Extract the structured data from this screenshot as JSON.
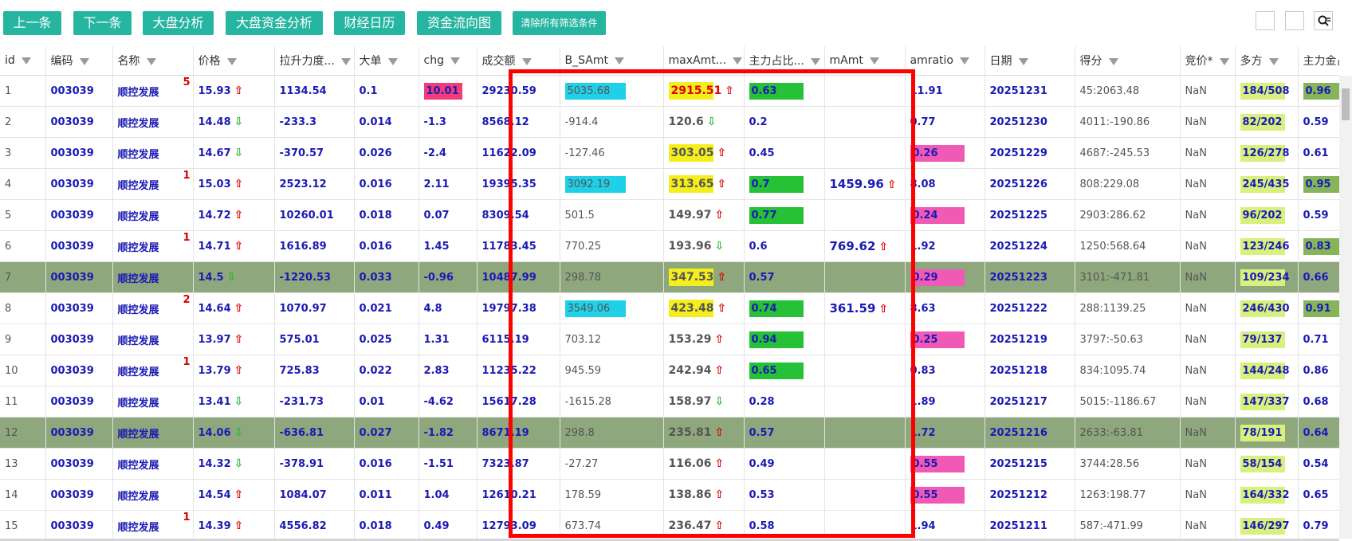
{
  "toolbar": {
    "buttons": [
      "上一条",
      "下一条",
      "大盘分析",
      "大盘资金分析",
      "财经日历",
      "资金流向图",
      "清除所有筛选条件"
    ]
  },
  "columns": [
    "id",
    "编码",
    "名称",
    "价格",
    "拉升力度...",
    "大单",
    "chg",
    "成交额",
    "B_SAmt",
    "maxAmt...",
    "主力占比...",
    "mAmt",
    "amratio",
    "日期",
    "得分",
    "竞价*",
    "多方",
    "主力金占..."
  ],
  "rows": [
    {
      "id": "1",
      "code": "003039",
      "name": "顺控发展",
      "mark": "5",
      "price": "15.93",
      "dir": "up",
      "lift": "1134.54",
      "big": "0.1",
      "chg": "10.01",
      "amount": "29230.59",
      "bs": "5035.68",
      "maxamt": "2915.51",
      "maxdir": "up",
      "zl": "0.63",
      "mamt": "",
      "mdir": "",
      "amr": "11.91",
      "date": "20251231",
      "score": "45:2063.48",
      "jj": "NaN",
      "df": "184/508",
      "zlj": "0.96"
    },
    {
      "id": "2",
      "code": "003039",
      "name": "顺控发展",
      "mark": "",
      "price": "14.48",
      "dir": "down",
      "lift": "-233.3",
      "big": "0.014",
      "chg": "-1.3",
      "amount": "8568.12",
      "bs": "-914.4",
      "maxamt": "120.6",
      "maxdir": "down",
      "zl": "0.2",
      "mamt": "",
      "mdir": "",
      "amr": "0.77",
      "date": "20251230",
      "score": "4011:-190.86",
      "jj": "NaN",
      "df": "82/202",
      "zlj": "0.59"
    },
    {
      "id": "3",
      "code": "003039",
      "name": "顺控发展",
      "mark": "",
      "price": "14.67",
      "dir": "down",
      "lift": "-370.57",
      "big": "0.026",
      "chg": "-2.4",
      "amount": "11622.09",
      "bs": "-127.46",
      "maxamt": "303.05",
      "maxdir": "up",
      "zl": "0.45",
      "mamt": "",
      "mdir": "",
      "amr": "0.26",
      "date": "20251229",
      "score": "4687:-245.53",
      "jj": "NaN",
      "df": "126/278",
      "zlj": "0.61"
    },
    {
      "id": "4",
      "code": "003039",
      "name": "顺控发展",
      "mark": "1",
      "price": "15.03",
      "dir": "up",
      "lift": "2523.12",
      "big": "0.016",
      "chg": "2.11",
      "amount": "19395.35",
      "bs": "3092.19",
      "maxamt": "313.65",
      "maxdir": "up",
      "zl": "0.7",
      "mamt": "1459.96",
      "mdir": "up",
      "amr": "8.08",
      "date": "20251226",
      "score": "808:229.08",
      "jj": "NaN",
      "df": "245/435",
      "zlj": "0.95"
    },
    {
      "id": "5",
      "code": "003039",
      "name": "顺控发展",
      "mark": "",
      "price": "14.72",
      "dir": "up",
      "lift": "10260.01",
      "big": "0.018",
      "chg": "0.07",
      "amount": "8309.54",
      "bs": "501.5",
      "maxamt": "149.97",
      "maxdir": "up",
      "zl": "0.77",
      "mamt": "",
      "mdir": "",
      "amr": "0.24",
      "date": "20251225",
      "score": "2903:286.62",
      "jj": "NaN",
      "df": "96/202",
      "zlj": "0.59"
    },
    {
      "id": "6",
      "code": "003039",
      "name": "顺控发展",
      "mark": "1",
      "price": "14.71",
      "dir": "up",
      "lift": "1616.89",
      "big": "0.016",
      "chg": "1.45",
      "amount": "11783.45",
      "bs": "770.25",
      "maxamt": "193.96",
      "maxdir": "down",
      "zl": "0.6",
      "mamt": "769.62",
      "mdir": "up",
      "amr": "1.92",
      "date": "20251224",
      "score": "1250:568.64",
      "jj": "NaN",
      "df": "123/246",
      "zlj": "0.83"
    },
    {
      "id": "7",
      "code": "003039",
      "name": "顺控发展",
      "mark": "",
      "price": "14.5",
      "dir": "down",
      "lift": "-1220.53",
      "big": "0.033",
      "chg": "-0.96",
      "amount": "10487.99",
      "bs": "298.78",
      "maxamt": "347.53",
      "maxdir": "up",
      "zl": "0.57",
      "mamt": "",
      "mdir": "",
      "amr": "0.29",
      "date": "20251223",
      "score": "3101:-471.81",
      "jj": "NaN",
      "df": "109/234",
      "zlj": "0.66"
    },
    {
      "id": "8",
      "code": "003039",
      "name": "顺控发展",
      "mark": "2",
      "price": "14.64",
      "dir": "up",
      "lift": "1070.97",
      "big": "0.021",
      "chg": "4.8",
      "amount": "19797.38",
      "bs": "3549.06",
      "maxamt": "423.48",
      "maxdir": "up",
      "zl": "0.74",
      "mamt": "361.59",
      "mdir": "up",
      "amr": "8.63",
      "date": "20251222",
      "score": "288:1139.25",
      "jj": "NaN",
      "df": "246/430",
      "zlj": "0.91"
    },
    {
      "id": "9",
      "code": "003039",
      "name": "顺控发展",
      "mark": "",
      "price": "13.97",
      "dir": "up",
      "lift": "575.01",
      "big": "0.025",
      "chg": "1.31",
      "amount": "6115.19",
      "bs": "703.12",
      "maxamt": "153.29",
      "maxdir": "up",
      "zl": "0.94",
      "mamt": "",
      "mdir": "",
      "amr": "0.25",
      "date": "20251219",
      "score": "3797:-50.63",
      "jj": "NaN",
      "df": "79/137",
      "zlj": "0.71"
    },
    {
      "id": "10",
      "code": "003039",
      "name": "顺控发展",
      "mark": "1",
      "price": "13.79",
      "dir": "up",
      "lift": "725.83",
      "big": "0.022",
      "chg": "2.83",
      "amount": "11235.22",
      "bs": "945.59",
      "maxamt": "242.94",
      "maxdir": "up",
      "zl": "0.65",
      "mamt": "",
      "mdir": "",
      "amr": "0.83",
      "date": "20251218",
      "score": "834:1095.74",
      "jj": "NaN",
      "df": "144/248",
      "zlj": "0.86"
    },
    {
      "id": "11",
      "code": "003039",
      "name": "顺控发展",
      "mark": "",
      "price": "13.41",
      "dir": "down",
      "lift": "-231.73",
      "big": "0.01",
      "chg": "-4.62",
      "amount": "15617.28",
      "bs": "-1615.28",
      "maxamt": "158.97",
      "maxdir": "down",
      "zl": "0.28",
      "mamt": "",
      "mdir": "",
      "amr": "1.89",
      "date": "20251217",
      "score": "5015:-1186.67",
      "jj": "NaN",
      "df": "147/337",
      "zlj": "0.68"
    },
    {
      "id": "12",
      "code": "003039",
      "name": "顺控发展",
      "mark": "",
      "price": "14.06",
      "dir": "down",
      "lift": "-636.81",
      "big": "0.027",
      "chg": "-1.82",
      "amount": "8671.19",
      "bs": "298.8",
      "maxamt": "235.81",
      "maxdir": "up",
      "zl": "0.57",
      "mamt": "",
      "mdir": "",
      "amr": "1.72",
      "date": "20251216",
      "score": "2633:-63.81",
      "jj": "NaN",
      "df": "78/191",
      "zlj": "0.64"
    },
    {
      "id": "13",
      "code": "003039",
      "name": "顺控发展",
      "mark": "",
      "price": "14.32",
      "dir": "down",
      "lift": "-378.91",
      "big": "0.016",
      "chg": "-1.51",
      "amount": "7323.87",
      "bs": "-27.27",
      "maxamt": "116.06",
      "maxdir": "up",
      "zl": "0.49",
      "mamt": "",
      "mdir": "",
      "amr": "0.55",
      "date": "20251215",
      "score": "3744:28.56",
      "jj": "NaN",
      "df": "58/154",
      "zlj": "0.54"
    },
    {
      "id": "14",
      "code": "003039",
      "name": "顺控发展",
      "mark": "",
      "price": "14.54",
      "dir": "up",
      "lift": "1084.07",
      "big": "0.011",
      "chg": "1.04",
      "amount": "12610.21",
      "bs": "178.59",
      "maxamt": "138.86",
      "maxdir": "up",
      "zl": "0.53",
      "mamt": "",
      "mdir": "",
      "amr": "0.55",
      "date": "20251212",
      "score": "1263:198.77",
      "jj": "NaN",
      "df": "164/332",
      "zlj": "0.65"
    },
    {
      "id": "15",
      "code": "003039",
      "name": "顺控发展",
      "mark": "1",
      "price": "14.39",
      "dir": "up",
      "lift": "4556.82",
      "big": "0.018",
      "chg": "0.49",
      "amount": "12793.09",
      "bs": "673.74",
      "maxamt": "236.47",
      "maxdir": "up",
      "zl": "0.58",
      "mamt": "",
      "mdir": "",
      "amr": "1.94",
      "date": "20251211",
      "score": "587:-471.99",
      "jj": "NaN",
      "df": "146/297",
      "zlj": "0.79"
    }
  ],
  "colors": {
    "button": "#26b5a0",
    "selected_row": "#8fa77d",
    "highlight_box": "#ff0000",
    "cyan": "#1ed0e8",
    "green": "#26c136",
    "pink": "#f05ab4",
    "yellow": "#f4ef1c",
    "lime": "#d8f07c",
    "red": "#f03c78",
    "olive": "#86b45a",
    "arrow_up": "#e00000",
    "arrow_down": "#2cb82c"
  },
  "icons": {
    "arrow_up": "arrow-up-icon",
    "arrow_down": "arrow-down-icon",
    "filter": "filter-icon",
    "search_settings": "search-settings-icon"
  }
}
